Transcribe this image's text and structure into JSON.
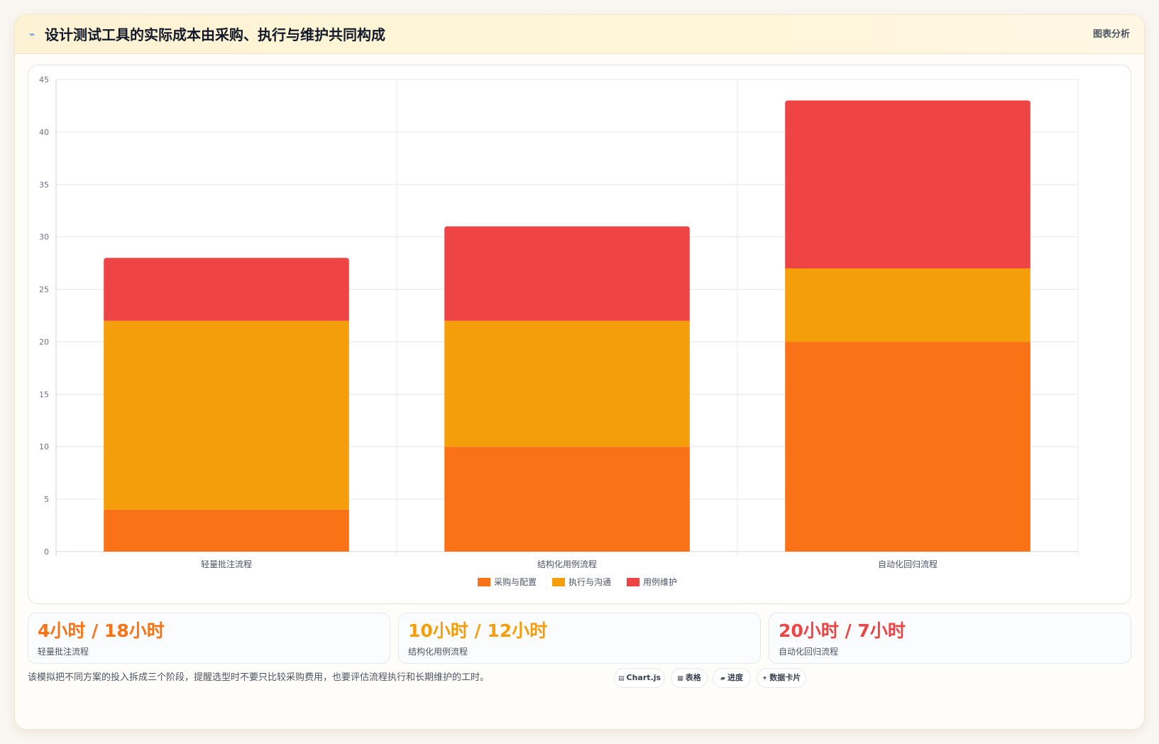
{
  "header": {
    "icon": "trend-icon",
    "title": "设计测试工具的实际成本由采购、执行与维护共同构成",
    "tag": "图表分析"
  },
  "chart_data": {
    "type": "bar",
    "stacked": true,
    "categories": [
      "轻量批注流程",
      "结构化用例流程",
      "自动化回归流程"
    ],
    "series": [
      {
        "name": "采购与配置",
        "values": [
          4,
          10,
          20
        ],
        "color": "#f97316"
      },
      {
        "name": "执行与沟通",
        "values": [
          18,
          12,
          7
        ],
        "color": "#f59e0b"
      },
      {
        "name": "用例维护",
        "values": [
          6,
          9,
          16
        ],
        "color": "#ef4444"
      }
    ],
    "ylim": [
      0,
      45
    ],
    "yticks": [
      "0",
      "5",
      "10",
      "15",
      "20",
      "25",
      "30",
      "35",
      "40",
      "45"
    ],
    "grid": true,
    "legend": "bottom-center"
  },
  "stats": [
    {
      "value": "4小时 / 18小时",
      "label": "轻量批注流程",
      "color": "#f97316"
    },
    {
      "value": "10小时 / 12小时",
      "label": "结构化用例流程",
      "color": "#f59e0b"
    },
    {
      "value": "20小时 / 7小时",
      "label": "自动化回归流程",
      "color": "#ef4444"
    }
  ],
  "footer": {
    "note": "该模拟把不同方案的投入拆成三个阶段，提醒选型时不要只比较采购费用，也要评估流程执行和长期维护的工时。",
    "chips": [
      {
        "icon": "chart-icon",
        "label": "Chart.js"
      },
      {
        "icon": "table-icon",
        "label": "表格"
      },
      {
        "icon": "progress-icon",
        "label": "进度"
      },
      {
        "icon": "sparkle-icon",
        "label": "数据卡片"
      }
    ]
  }
}
